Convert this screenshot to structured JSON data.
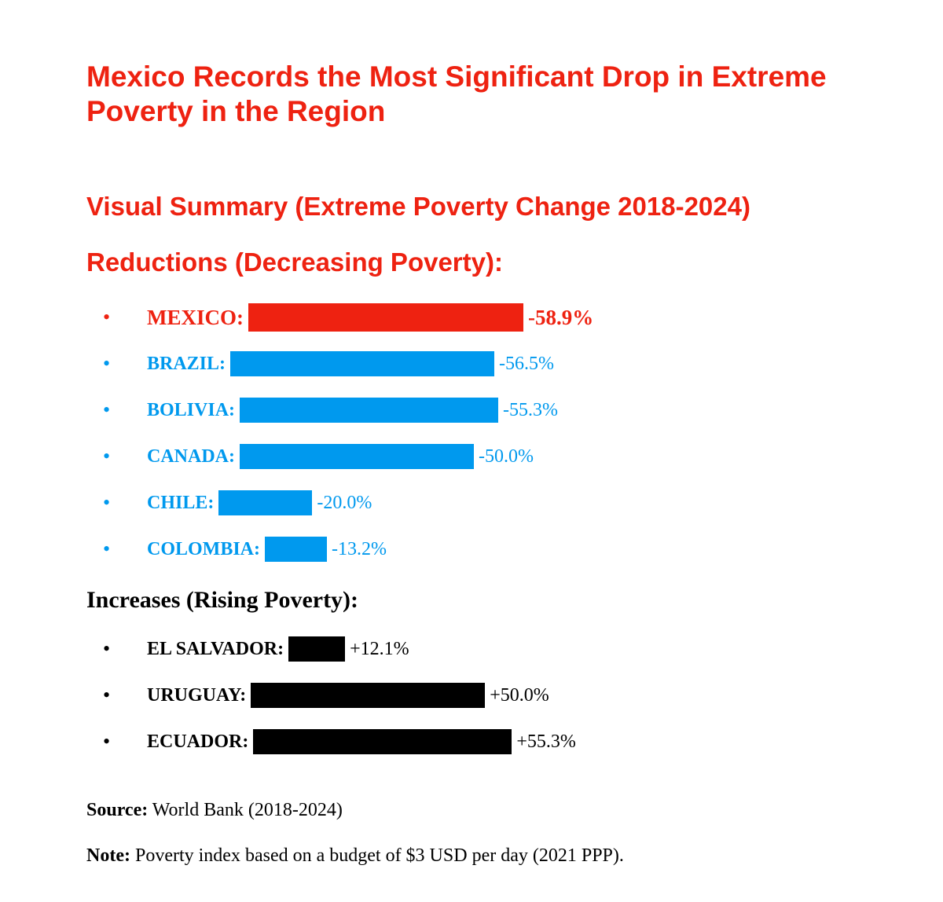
{
  "title": "Mexico Records the Most Significant Drop in Extreme Poverty in the Region",
  "subtitle": "Visual Summary (Extreme Poverty Change 2018-2024)",
  "colors": {
    "red": "#ee2211",
    "blue": "#0099ee",
    "black": "#000000"
  },
  "bullet_char": "•",
  "chart_data": [
    {
      "type": "bar",
      "title": "Reductions (Decreasing Poverty):",
      "unit": "%",
      "categories": [
        "MEXICO:",
        "BRAZIL:",
        "BOLIVIA:",
        "CANADA:",
        "CHILE:",
        "COLOMBIA:"
      ],
      "values": [
        -58.9,
        -56.5,
        -55.3,
        -50.0,
        -20.0,
        -13.2
      ],
      "value_labels": [
        "-58.9%",
        "-56.5%",
        "-55.3%",
        "-50.0%",
        "-20.0%",
        "-13.2%"
      ],
      "colors": [
        "#ee2211",
        "#0099ee",
        "#0099ee",
        "#0099ee",
        "#0099ee",
        "#0099ee"
      ],
      "highlight_index": 0
    },
    {
      "type": "bar",
      "title": "Increases (Rising Poverty):",
      "unit": "%",
      "categories": [
        "EL SALVADOR:",
        "URUGUAY:",
        "ECUADOR:"
      ],
      "values": [
        12.1,
        50.0,
        55.3
      ],
      "value_labels": [
        "+12.1%",
        "+50.0%",
        "+55.3%"
      ],
      "colors": [
        "#000000",
        "#000000",
        "#000000"
      ]
    }
  ],
  "source": {
    "label": "Source:",
    "text": "World Bank (2018-2024)"
  },
  "note": {
    "label": "Note:",
    "text": "Poverty index based on a budget of $3 USD per day (2021 PPP)."
  }
}
